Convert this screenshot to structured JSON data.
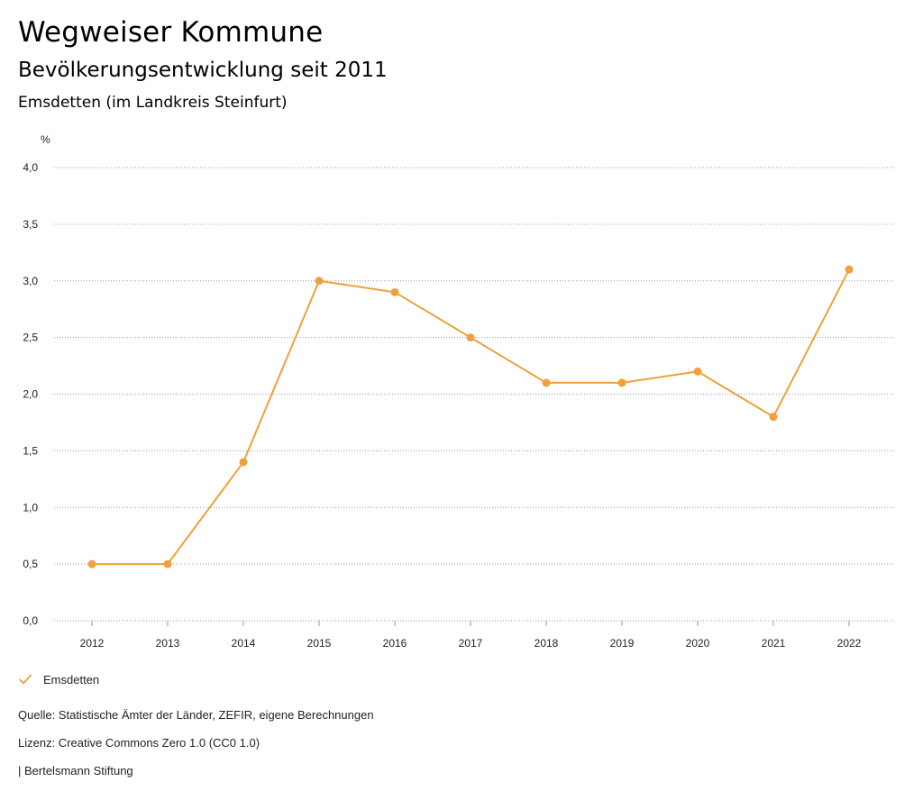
{
  "header": {
    "title": "Wegweiser Kommune",
    "subtitle": "Bevölkerungsentwicklung seit 2011",
    "region": "Emsdetten (im Landkreis Steinfurt)"
  },
  "chart_data": {
    "type": "line",
    "ylabel": "%",
    "xlabel": "",
    "ylim": [
      0,
      4
    ],
    "yticks": [
      "0,0",
      "0,5",
      "1,0",
      "1,5",
      "2,0",
      "2,5",
      "3,0",
      "3,5",
      "4,0"
    ],
    "ytick_values": [
      0,
      0.5,
      1.0,
      1.5,
      2.0,
      2.5,
      3.0,
      3.5,
      4.0
    ],
    "categories": [
      "2012",
      "2013",
      "2014",
      "2015",
      "2016",
      "2017",
      "2018",
      "2019",
      "2020",
      "2021",
      "2022"
    ],
    "series": [
      {
        "name": "Emsdetten",
        "color": "#f0a03c",
        "values": [
          0.5,
          0.5,
          1.4,
          3.0,
          2.9,
          2.5,
          2.1,
          2.1,
          2.2,
          1.8,
          3.1
        ]
      }
    ],
    "grid": "horizontal-dotted",
    "legend": "bottom-left"
  },
  "legend": {
    "items": [
      {
        "label": "Emsdetten",
        "icon": "checkmark-icon",
        "color": "#f0a03c"
      }
    ]
  },
  "footer": {
    "source": "Quelle: Statistische Ämter der Länder, ZEFIR, eigene Berechnungen",
    "license": "Lizenz: Creative Commons Zero 1.0 (CC0 1.0)",
    "brand": "| Bertelsmann Stiftung"
  }
}
